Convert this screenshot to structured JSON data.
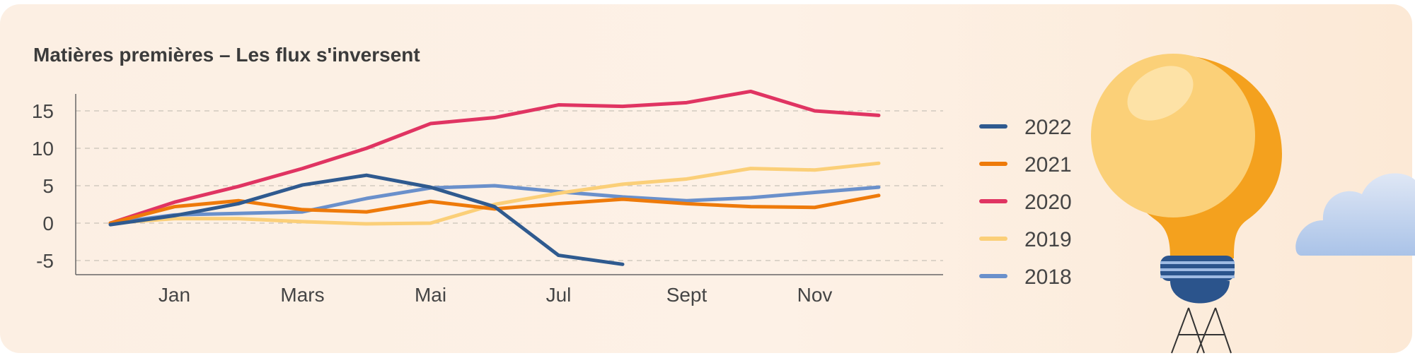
{
  "chart_data": {
    "type": "line",
    "title": "Matières premières – Les flux s'inversent",
    "xlabel": "",
    "ylabel": "",
    "x_tick_labels": [
      "Jan",
      "Mars",
      "Mai",
      "Jul",
      "Sept",
      "Nov"
    ],
    "y_ticks": [
      15,
      10,
      5,
      0,
      -5
    ],
    "ylim": [
      -7,
      17
    ],
    "grid": "horizontal dashed",
    "legend_position": "right",
    "series": [
      {
        "name": "2022",
        "color": "#2f5a8f",
        "values": [
          -0.2,
          1.0,
          2.6,
          5.1,
          6.4,
          4.8,
          2.2,
          -4.3,
          -5.5
        ]
      },
      {
        "name": "2021",
        "color": "#ee7a0a",
        "values": [
          0,
          2.2,
          3.0,
          1.8,
          1.5,
          2.9,
          1.9,
          2.6,
          3.2,
          2.6,
          2.2,
          2.1,
          3.7
        ]
      },
      {
        "name": "2020",
        "color": "#e03462",
        "values": [
          0,
          2.8,
          4.9,
          7.3,
          10.0,
          13.3,
          14.1,
          15.8,
          15.6,
          16.1,
          17.6,
          15.0,
          14.4
        ]
      },
      {
        "name": "2019",
        "color": "#fbcf78",
        "values": [
          0,
          0.6,
          0.6,
          0.2,
          -0.1,
          0,
          2.5,
          4.0,
          5.2,
          5.9,
          7.3,
          7.1,
          8.0
        ]
      },
      {
        "name": "2018",
        "color": "#6a90cb",
        "values": [
          0,
          1.1,
          1.3,
          1.5,
          3.3,
          4.7,
          5.0,
          4.2,
          3.5,
          3.0,
          3.4,
          4.1,
          4.8
        ]
      }
    ]
  }
}
